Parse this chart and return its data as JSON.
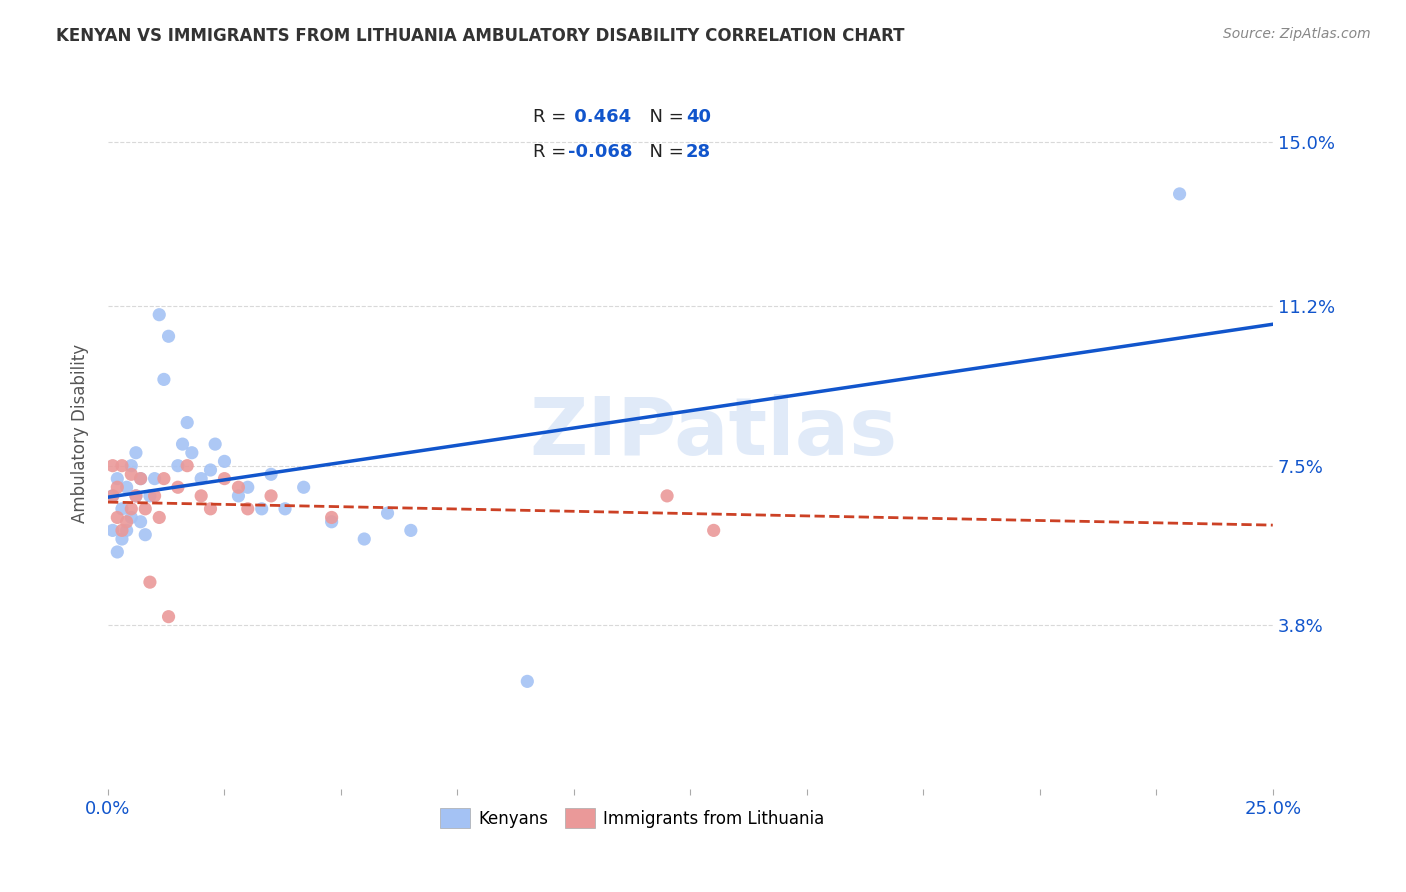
{
  "title": "KENYAN VS IMMIGRANTS FROM LITHUANIA AMBULATORY DISABILITY CORRELATION CHART",
  "source": "Source: ZipAtlas.com",
  "ylabel": "Ambulatory Disability",
  "ytick_labels": [
    "3.8%",
    "7.5%",
    "11.2%",
    "15.0%"
  ],
  "ytick_values": [
    0.038,
    0.075,
    0.112,
    0.15
  ],
  "xlim": [
    0.0,
    0.25
  ],
  "ylim": [
    0.0,
    0.165
  ],
  "watermark": "ZIPatlas",
  "kenyan_x": [
    0.001,
    0.001,
    0.002,
    0.002,
    0.003,
    0.003,
    0.004,
    0.004,
    0.005,
    0.005,
    0.006,
    0.006,
    0.007,
    0.007,
    0.008,
    0.009,
    0.01,
    0.011,
    0.012,
    0.013,
    0.015,
    0.016,
    0.017,
    0.018,
    0.02,
    0.022,
    0.023,
    0.025,
    0.028,
    0.03,
    0.033,
    0.035,
    0.038,
    0.042,
    0.048,
    0.055,
    0.06,
    0.065,
    0.09,
    0.23
  ],
  "kenyan_y": [
    0.06,
    0.068,
    0.055,
    0.072,
    0.058,
    0.065,
    0.06,
    0.07,
    0.063,
    0.075,
    0.068,
    0.078,
    0.062,
    0.072,
    0.059,
    0.068,
    0.072,
    0.11,
    0.095,
    0.105,
    0.075,
    0.08,
    0.085,
    0.078,
    0.072,
    0.074,
    0.08,
    0.076,
    0.068,
    0.07,
    0.065,
    0.073,
    0.065,
    0.07,
    0.062,
    0.058,
    0.064,
    0.06,
    0.025,
    0.138
  ],
  "lithuania_x": [
    0.001,
    0.001,
    0.002,
    0.002,
    0.003,
    0.003,
    0.004,
    0.005,
    0.005,
    0.006,
    0.007,
    0.008,
    0.009,
    0.01,
    0.011,
    0.012,
    0.013,
    0.015,
    0.017,
    0.02,
    0.022,
    0.025,
    0.028,
    0.03,
    0.035,
    0.048,
    0.12,
    0.13
  ],
  "lithuania_y": [
    0.068,
    0.075,
    0.063,
    0.07,
    0.06,
    0.075,
    0.062,
    0.073,
    0.065,
    0.068,
    0.072,
    0.065,
    0.048,
    0.068,
    0.063,
    0.072,
    0.04,
    0.07,
    0.075,
    0.068,
    0.065,
    0.072,
    0.07,
    0.065,
    0.068,
    0.063,
    0.068,
    0.06
  ],
  "kenyan_color": "#a4c2f4",
  "lithuania_color": "#ea9999",
  "kenyan_line_color": "#1155cc",
  "lithuania_line_color": "#cc4125",
  "text_color_blue": "#1155cc",
  "text_color_dark": "#222222",
  "background_color": "#ffffff",
  "grid_color": "#d9d9d9"
}
